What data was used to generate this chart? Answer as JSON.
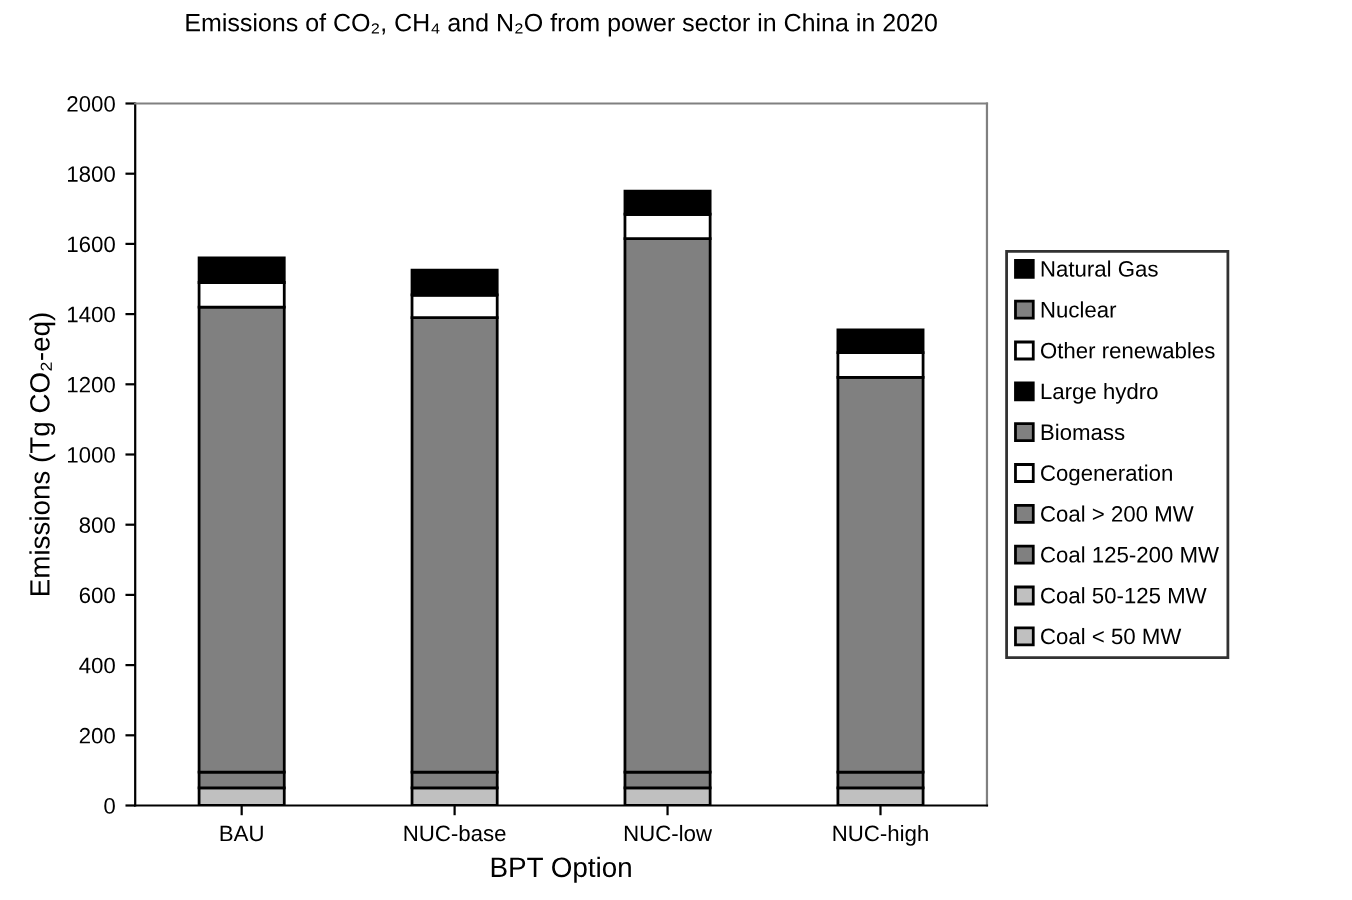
{
  "chart_data": {
    "type": "bar",
    "stacked": true,
    "title": "Emissions of CO₂, CH₄ and N₂O from power sector in China in 2020",
    "xlabel": "BPT Option",
    "ylabel": "Emissions (Tg CO₂-eq)",
    "categories": [
      "BAU",
      "NUC-base",
      "NUC-low",
      "NUC-high"
    ],
    "series": [
      {
        "name": "Coal < 50 MW",
        "color": "#c0c0c0",
        "values": [
          0,
          0,
          0,
          0
        ]
      },
      {
        "name": "Coal 50-125 MW",
        "color": "#c0c0c0",
        "values": [
          50,
          50,
          50,
          50
        ]
      },
      {
        "name": "Coal 125-200 MW",
        "color": "#808080",
        "values": [
          45,
          45,
          45,
          45
        ]
      },
      {
        "name": "Coal > 200 MW",
        "color": "#808080",
        "values": [
          1325,
          1295,
          1520,
          1125
        ]
      },
      {
        "name": "Cogeneration",
        "color": "#ffffff",
        "values": [
          70,
          65,
          70,
          70
        ]
      },
      {
        "name": "Biomass",
        "color": "#808080",
        "values": [
          0,
          0,
          0,
          0
        ]
      },
      {
        "name": "Large hydro",
        "color": "#000000",
        "values": [
          0,
          0,
          0,
          0
        ]
      },
      {
        "name": "Other renewables",
        "color": "#ffffff",
        "values": [
          0,
          0,
          0,
          0
        ]
      },
      {
        "name": "Nuclear",
        "color": "#808080",
        "values": [
          0,
          0,
          0,
          0
        ]
      },
      {
        "name": "Natural Gas",
        "color": "#000000",
        "values": [
          70,
          70,
          65,
          65
        ]
      }
    ],
    "ylim": [
      0,
      2000
    ],
    "yticks": [
      0,
      200,
      400,
      600,
      800,
      1000,
      1200,
      1400,
      1600,
      1800,
      2000
    ],
    "grid": false,
    "legend": "right"
  }
}
